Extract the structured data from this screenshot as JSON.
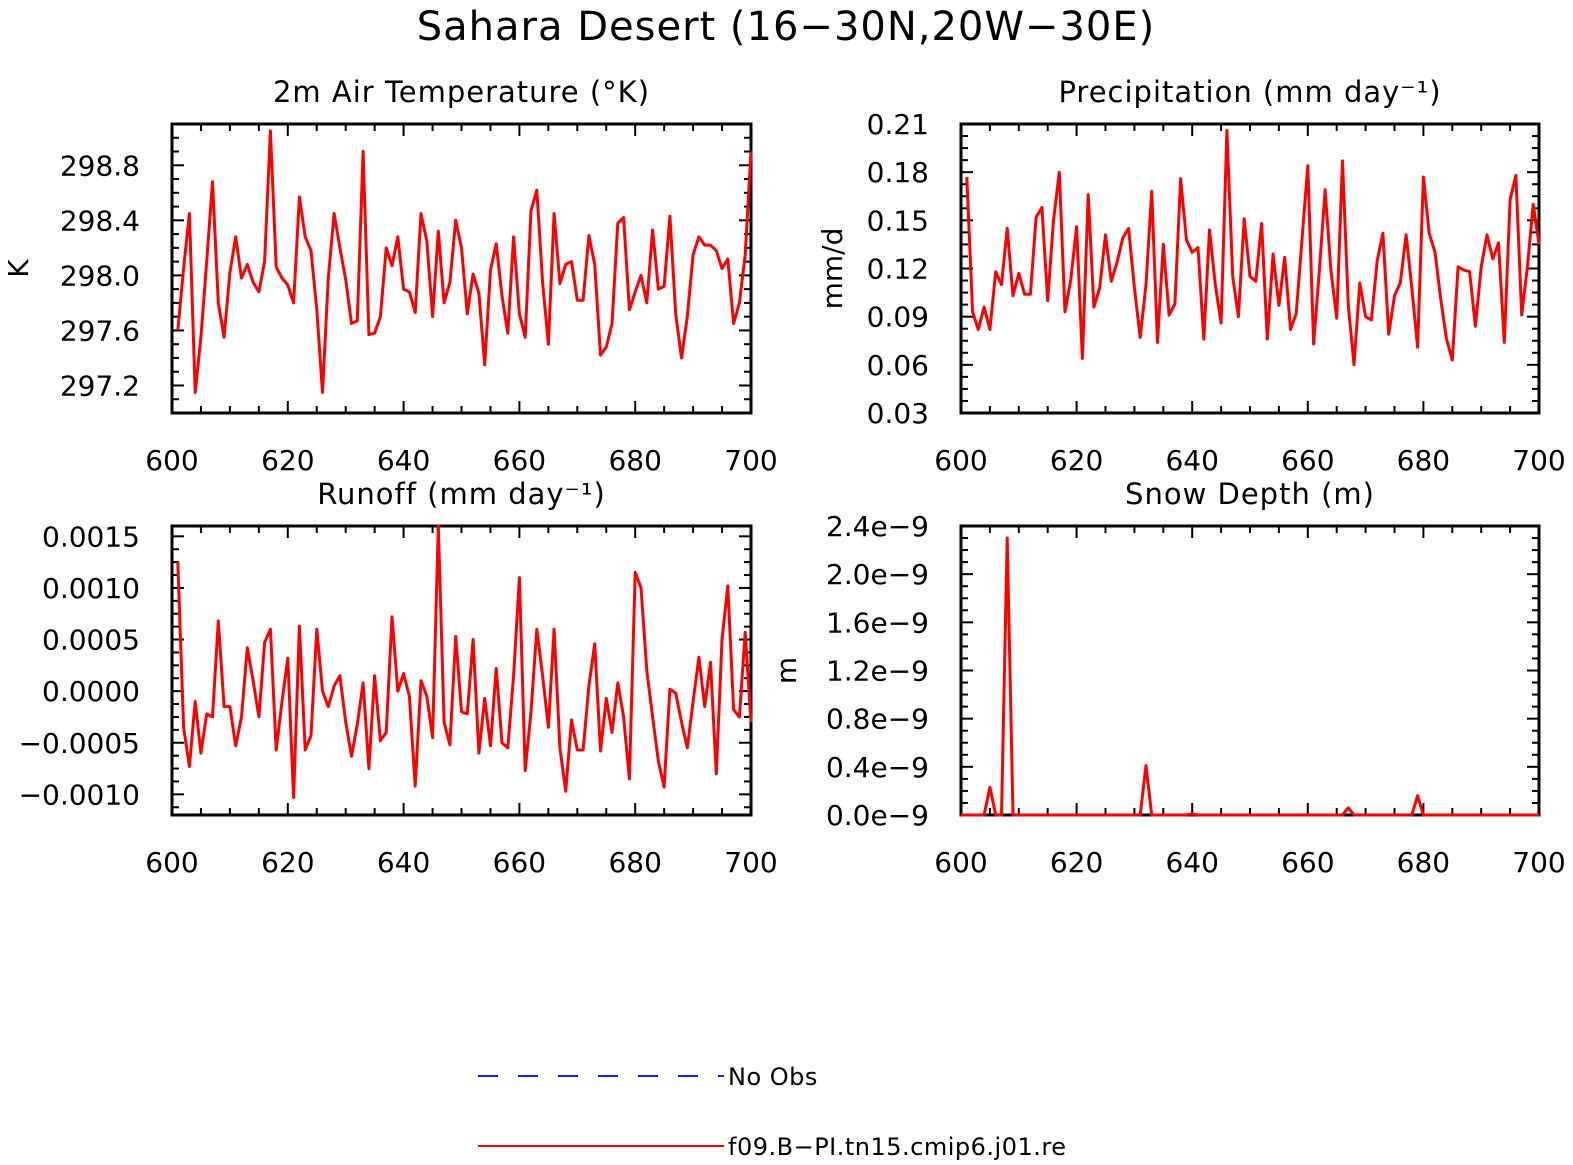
{
  "figure": {
    "title": "Sahara Desert (16−30N,20W−30E)"
  },
  "legend": {
    "entries": [
      {
        "label": "No Obs",
        "color": "#1a1aff",
        "style": "dashed"
      },
      {
        "label": "f09.B−PI.tn15.cmip6.j01.re",
        "color": "#ff0000",
        "style": "solid"
      }
    ]
  },
  "colors": {
    "series": "#ff0000",
    "obs": "#1a1aff",
    "axes": "#000000"
  },
  "chart_data": [
    {
      "type": "line",
      "title": "2m Air Temperature (°K)",
      "xlabel": "",
      "ylabel": "K",
      "xlim": [
        600,
        700
      ],
      "ylim": [
        297.0,
        299.1
      ],
      "xticks": [
        "600",
        "620",
        "640",
        "660",
        "680",
        "700"
      ],
      "yticks": [
        "297.2",
        "297.6",
        "298.0",
        "298.4",
        "298.8"
      ],
      "x": [
        601,
        602,
        603,
        604,
        605,
        606,
        607,
        608,
        609,
        610,
        611,
        612,
        613,
        614,
        615,
        616,
        617,
        618,
        619,
        620,
        621,
        622,
        623,
        624,
        625,
        626,
        627,
        628,
        629,
        630,
        631,
        632,
        633,
        634,
        635,
        636,
        637,
        638,
        639,
        640,
        641,
        642,
        643,
        644,
        645,
        646,
        647,
        648,
        649,
        650,
        651,
        652,
        653,
        654,
        655,
        656,
        657,
        658,
        659,
        660,
        661,
        662,
        663,
        664,
        665,
        666,
        667,
        668,
        669,
        670,
        671,
        672,
        673,
        674,
        675,
        676,
        677,
        678,
        679,
        680,
        681,
        682,
        683,
        684,
        685,
        686,
        687,
        688,
        689,
        690,
        691,
        692,
        693,
        694,
        695,
        696,
        697,
        698,
        699,
        700
      ],
      "series": [
        {
          "name": "f09.B−PI.tn15.cmip6.j01.re",
          "values": [
            297.6,
            298.05,
            298.45,
            297.15,
            297.55,
            298.1,
            298.68,
            297.8,
            297.55,
            298.02,
            298.28,
            297.98,
            298.08,
            297.95,
            297.88,
            298.1,
            299.05,
            298.06,
            297.98,
            297.93,
            297.8,
            298.57,
            298.28,
            298.18,
            297.75,
            297.15,
            297.98,
            298.45,
            298.2,
            297.97,
            297.65,
            297.67,
            298.9,
            297.57,
            297.58,
            297.7,
            298.2,
            298.07,
            298.28,
            297.9,
            297.88,
            297.73,
            298.45,
            298.25,
            297.7,
            298.32,
            297.8,
            297.95,
            298.4,
            298.2,
            297.72,
            298.01,
            297.87,
            297.35,
            298.04,
            298.23,
            297.85,
            297.58,
            298.28,
            297.72,
            297.55,
            298.47,
            298.62,
            297.95,
            297.5,
            298.45,
            297.94,
            298.08,
            298.1,
            297.82,
            297.82,
            298.29,
            298.08,
            297.42,
            297.48,
            297.65,
            298.38,
            298.42,
            297.75,
            297.88,
            298.0,
            297.8,
            298.33,
            297.9,
            297.92,
            298.43,
            297.72,
            297.4,
            297.7,
            298.15,
            298.28,
            298.22,
            298.22,
            298.18,
            298.05,
            298.12,
            297.65,
            297.8,
            298.15,
            298.9
          ]
        }
      ]
    },
    {
      "type": "line",
      "title": "Precipitation (mm day⁻¹)",
      "xlabel": "",
      "ylabel": "mm/d",
      "xlim": [
        600,
        700
      ],
      "ylim": [
        0.03,
        0.21
      ],
      "xticks": [
        "600",
        "620",
        "640",
        "660",
        "680",
        "700"
      ],
      "yticks": [
        "0.03",
        "0.06",
        "0.09",
        "0.12",
        "0.15",
        "0.18",
        "0.21"
      ],
      "x": [
        601,
        602,
        603,
        604,
        605,
        606,
        607,
        608,
        609,
        610,
        611,
        612,
        613,
        614,
        615,
        616,
        617,
        618,
        619,
        620,
        621,
        622,
        623,
        624,
        625,
        626,
        627,
        628,
        629,
        630,
        631,
        632,
        633,
        634,
        635,
        636,
        637,
        638,
        639,
        640,
        641,
        642,
        643,
        644,
        645,
        646,
        647,
        648,
        649,
        650,
        651,
        652,
        653,
        654,
        655,
        656,
        657,
        658,
        659,
        660,
        661,
        662,
        663,
        664,
        665,
        666,
        667,
        668,
        669,
        670,
        671,
        672,
        673,
        674,
        675,
        676,
        677,
        678,
        679,
        680,
        681,
        682,
        683,
        684,
        685,
        686,
        687,
        688,
        689,
        690,
        691,
        692,
        693,
        694,
        695,
        696,
        697,
        698,
        699,
        700
      ],
      "series": [
        {
          "name": "f09.B−PI.tn15.cmip6.j01.re",
          "values": [
            0.177,
            0.093,
            0.082,
            0.096,
            0.082,
            0.118,
            0.11,
            0.145,
            0.103,
            0.117,
            0.104,
            0.104,
            0.152,
            0.158,
            0.1,
            0.15,
            0.18,
            0.093,
            0.113,
            0.146,
            0.064,
            0.166,
            0.096,
            0.108,
            0.141,
            0.112,
            0.124,
            0.139,
            0.145,
            0.108,
            0.077,
            0.11,
            0.168,
            0.074,
            0.135,
            0.091,
            0.098,
            0.176,
            0.138,
            0.13,
            0.133,
            0.076,
            0.144,
            0.11,
            0.086,
            0.206,
            0.115,
            0.09,
            0.151,
            0.115,
            0.112,
            0.148,
            0.076,
            0.129,
            0.097,
            0.127,
            0.082,
            0.092,
            0.138,
            0.184,
            0.073,
            0.119,
            0.169,
            0.119,
            0.089,
            0.187,
            0.097,
            0.06,
            0.111,
            0.09,
            0.088,
            0.125,
            0.142,
            0.079,
            0.103,
            0.111,
            0.141,
            0.108,
            0.071,
            0.177,
            0.142,
            0.13,
            0.101,
            0.076,
            0.063,
            0.121,
            0.119,
            0.118,
            0.084,
            0.121,
            0.141,
            0.126,
            0.136,
            0.074,
            0.163,
            0.178,
            0.091,
            0.121,
            0.16,
            0.135
          ]
        }
      ]
    },
    {
      "type": "line",
      "title": "Runoff (mm day⁻¹)",
      "xlabel": "",
      "ylabel": "",
      "xlim": [
        600,
        700
      ],
      "ylim": [
        -0.0012,
        0.0016
      ],
      "xticks": [
        "600",
        "620",
        "640",
        "660",
        "680",
        "700"
      ],
      "yticks": [
        "−0.0010",
        "−0.0005",
        "0.0000",
        "0.0005",
        "0.0010",
        "0.0015"
      ],
      "x": [
        601,
        602,
        603,
        604,
        605,
        606,
        607,
        608,
        609,
        610,
        611,
        612,
        613,
        614,
        615,
        616,
        617,
        618,
        619,
        620,
        621,
        622,
        623,
        624,
        625,
        626,
        627,
        628,
        629,
        630,
        631,
        632,
        633,
        634,
        635,
        636,
        637,
        638,
        639,
        640,
        641,
        642,
        643,
        644,
        645,
        646,
        647,
        648,
        649,
        650,
        651,
        652,
        653,
        654,
        655,
        656,
        657,
        658,
        659,
        660,
        661,
        662,
        663,
        664,
        665,
        666,
        667,
        668,
        669,
        670,
        671,
        672,
        673,
        674,
        675,
        676,
        677,
        678,
        679,
        680,
        681,
        682,
        683,
        684,
        685,
        686,
        687,
        688,
        689,
        690,
        691,
        692,
        693,
        694,
        695,
        696,
        697,
        698,
        699,
        700
      ],
      "series": [
        {
          "name": "f09.B−PI.tn15.cmip6.j01.re",
          "values": [
            0.00125,
            -0.00035,
            -0.00073,
            -0.0001,
            -0.0006,
            -0.00022,
            -0.00025,
            0.00068,
            -0.00015,
            -0.00015,
            -0.00053,
            -0.00025,
            0.00042,
            0.0001,
            -0.00025,
            0.00047,
            0.0006,
            -0.00057,
            -0.0001,
            0.00032,
            -0.00103,
            0.00063,
            -0.00057,
            -0.00043,
            0.0006,
            0.0,
            -0.00015,
            5e-05,
            0.00015,
            -0.0003,
            -0.00063,
            -0.00032,
            8e-05,
            -0.00075,
            0.00015,
            -0.00048,
            -0.0004,
            0.00072,
            0.0,
            0.00017,
            -5e-05,
            -0.00092,
            0.0001,
            -5e-05,
            -0.00045,
            0.0016,
            -0.0003,
            -0.00052,
            0.00053,
            -0.0002,
            -0.00022,
            0.0005,
            -0.0006,
            -7e-05,
            -0.00053,
            0.00022,
            -0.0005,
            -0.00055,
            0.00015,
            0.0011,
            -0.00077,
            -0.0002,
            0.0006,
            0.00015,
            -0.00035,
            0.0006,
            -0.00055,
            -0.00097,
            -0.00028,
            -0.00057,
            -0.00057,
            5e-05,
            0.00046,
            -0.00058,
            -7e-05,
            -0.0004,
            8e-05,
            -0.00025,
            -0.00085,
            0.00115,
            0.001,
            0.0002,
            -0.00025,
            -0.00068,
            -0.00093,
            2e-05,
            -2e-05,
            -0.0003,
            -0.00055,
            -0.0001,
            0.00033,
            -0.00015,
            0.00028,
            -0.0008,
            0.0005,
            0.00102,
            -0.00018,
            -0.00025,
            0.00057,
            -0.0003
          ]
        }
      ]
    },
    {
      "type": "line",
      "title": "Snow Depth (m)",
      "xlabel": "",
      "ylabel": "m",
      "xlim": [
        600,
        700
      ],
      "ylim": [
        0,
        2.4e-09
      ],
      "xticks": [
        "600",
        "620",
        "640",
        "660",
        "680",
        "700"
      ],
      "yticks": [
        "0.0e−9",
        "0.4e−9",
        "0.8e−9",
        "1.2e−9",
        "1.6e−9",
        "2.0e−9",
        "2.4e−9"
      ],
      "x": [
        600,
        604,
        605,
        606,
        607,
        608,
        609,
        610,
        631,
        632,
        633,
        634,
        639,
        640,
        641,
        666,
        667,
        668,
        678,
        679,
        680,
        700
      ],
      "series": [
        {
          "name": "f09.B−PI.tn15.cmip6.j01.re",
          "values": [
            0,
            0,
            2.3e-10,
            0,
            0,
            2.3e-09,
            0,
            0,
            0,
            4.1e-10,
            0,
            0,
            0,
            1e-11,
            0,
            0,
            6e-11,
            0,
            0,
            1.6e-10,
            0,
            0
          ]
        }
      ]
    }
  ]
}
